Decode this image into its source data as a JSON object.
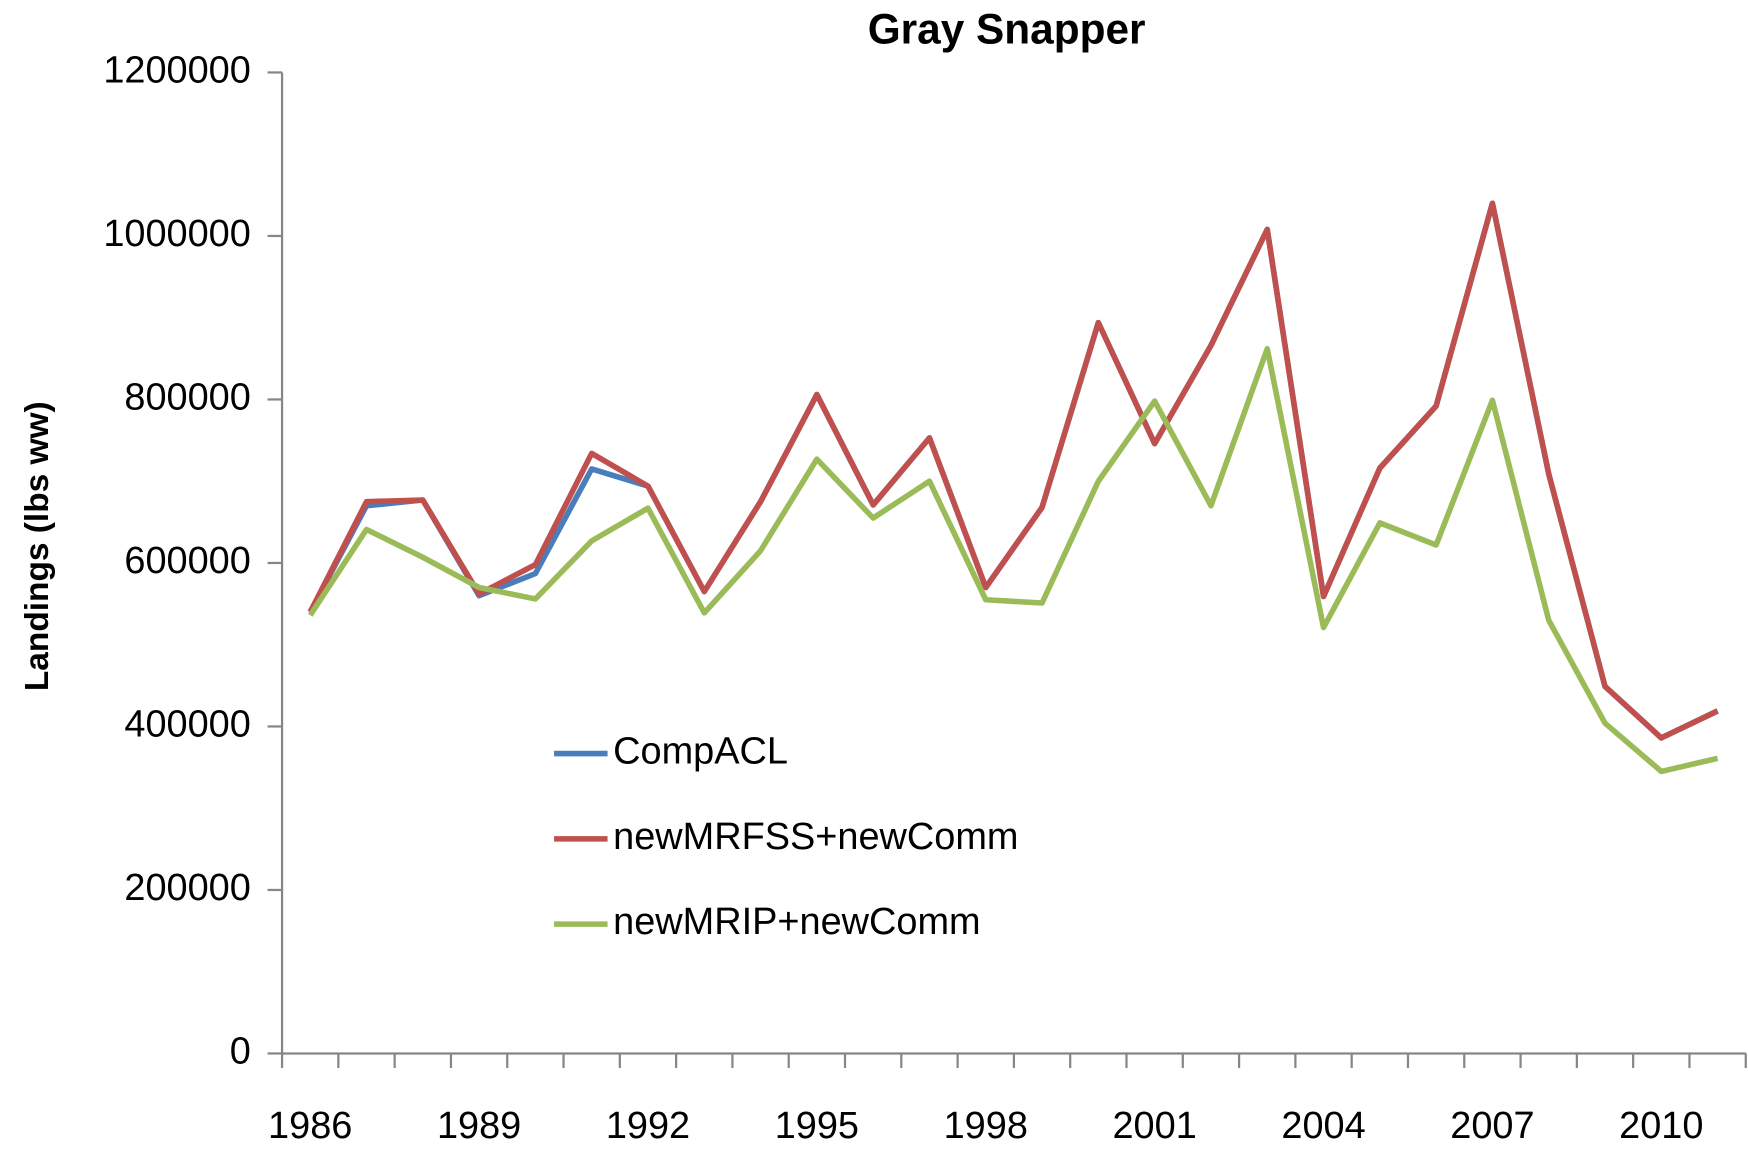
{
  "chart_data": {
    "type": "line",
    "title": "Gray Snapper",
    "y_label": "Landings (lbs ww)",
    "categories": [
      "1986",
      null,
      null,
      "1989",
      null,
      null,
      "1992",
      null,
      null,
      "1995",
      null,
      null,
      "1998",
      null,
      null,
      "2001",
      null,
      null,
      "2004",
      null,
      null,
      "2007",
      null,
      null,
      "2010",
      null
    ],
    "series": [
      {
        "name": "CompACL",
        "color": "#4a7ebb",
        "values": [
          540000,
          670000,
          677000,
          560000,
          587000,
          715000,
          694000,
          565000,
          675000,
          806000,
          671000,
          753000,
          570000,
          668000,
          894000,
          746000,
          866000,
          1008000,
          559000,
          716000,
          792000,
          1040000,
          709000,
          449000,
          386000,
          419000
        ]
      },
      {
        "name": "newMRFSS+newComm",
        "color": "#c0504d",
        "values": [
          540000,
          675000,
          677000,
          562000,
          598000,
          734000,
          694000,
          565000,
          675000,
          806000,
          671000,
          753000,
          570000,
          668000,
          894000,
          746000,
          866000,
          1008000,
          559000,
          716000,
          792000,
          1040000,
          709000,
          449000,
          386000,
          419000
        ]
      },
      {
        "name": "newMRIP+newComm",
        "color": "#9bbb59",
        "values": [
          536000,
          641000,
          607000,
          570000,
          556000,
          627000,
          667000,
          539000,
          615000,
          727000,
          655000,
          700000,
          555000,
          551000,
          700000,
          798000,
          670000,
          862000,
          521000,
          649000,
          622000,
          799000,
          530000,
          404000,
          345000,
          361000
        ]
      }
    ],
    "ylim": [
      0,
      1200000
    ],
    "yticks": [
      0,
      200000,
      400000,
      600000,
      800000,
      1000000,
      1200000
    ],
    "grid": false
  }
}
